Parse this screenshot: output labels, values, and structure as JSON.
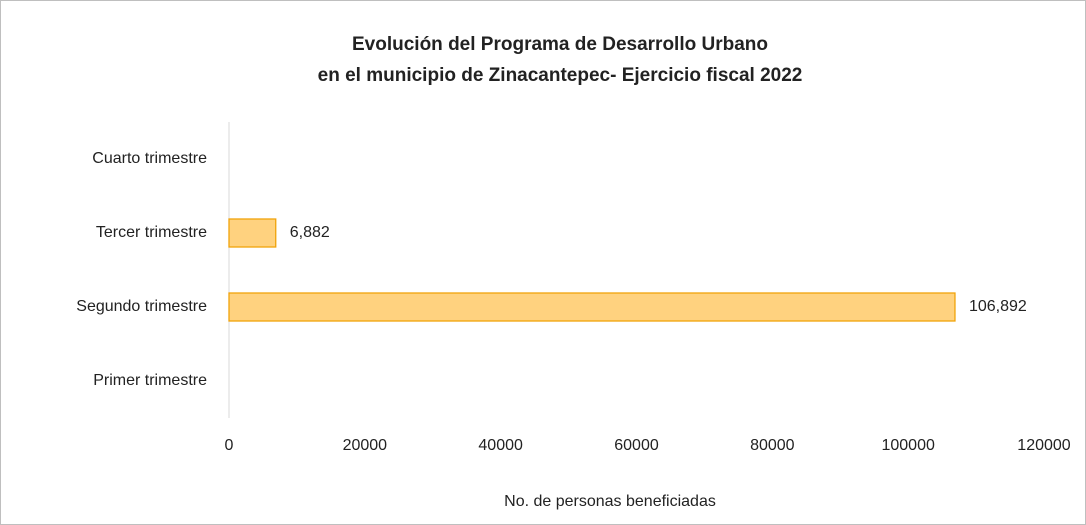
{
  "chart_data": {
    "type": "barh",
    "title": [
      "Evolución del Programa de Desarrollo Urbano",
      "en el municipio de Zinacantepec- Ejercicio fiscal 2022"
    ],
    "xlabel": "No. de personas beneficiadas",
    "categories": [
      "Primer trimestre",
      "Segundo trimestre",
      "Tercer trimestre",
      "Cuarto trimestre"
    ],
    "values": [
      null,
      106892,
      6882,
      null
    ],
    "value_labels": [
      null,
      "106,892",
      "6,882",
      null
    ],
    "color": "#ffd27f",
    "edge_color": "#f0a30a",
    "xlim": [
      0,
      120000
    ],
    "xticks": [
      0,
      20000,
      40000,
      60000,
      80000,
      100000,
      120000
    ],
    "grid": false
  }
}
